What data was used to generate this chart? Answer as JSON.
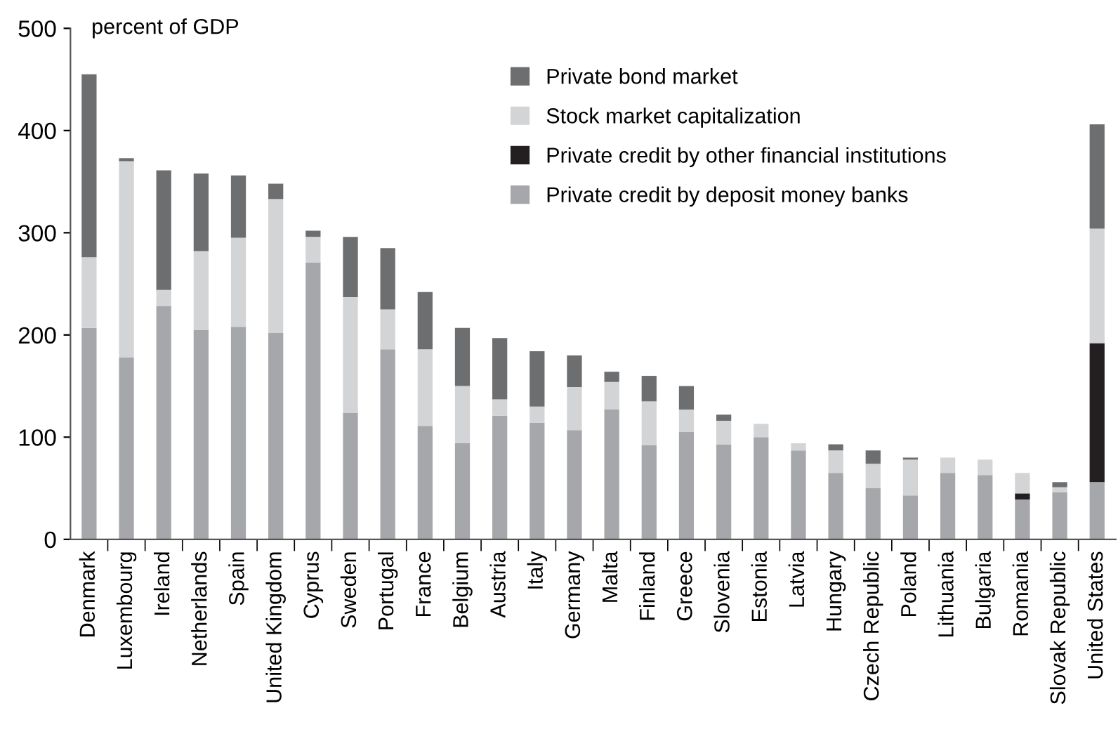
{
  "chart_data": {
    "type": "bar",
    "stacked": true,
    "ylabel": "percent of GDP",
    "categories": [
      "Denmark",
      "Luxembourg",
      "Ireland",
      "Netherlands",
      "Spain",
      "United Kingdom",
      "Cyprus",
      "Sweden",
      "Portugal",
      "France",
      "Belgium",
      "Austria",
      "Italy",
      "Germany",
      "Malta",
      "Finland",
      "Greece",
      "Slovenia",
      "Estonia",
      "Latvia",
      "Hungary",
      "Czech Republic",
      "Poland",
      "Lithuania",
      "Bulgaria",
      "Romania",
      "Slovak Republic",
      "United States"
    ],
    "series": [
      {
        "name": "Private credit by deposit money banks",
        "color": "#a6a7aa",
        "values": [
          207,
          178,
          228,
          205,
          208,
          202,
          271,
          124,
          186,
          111,
          94,
          121,
          114,
          107,
          127,
          92,
          105,
          93,
          100,
          87,
          65,
          50,
          43,
          65,
          63,
          39,
          46,
          56
        ]
      },
      {
        "name": "Private credit by other financial institutions",
        "color": "#231f20",
        "values": [
          0,
          0,
          0,
          0,
          0,
          0,
          0,
          0,
          0,
          0,
          0,
          0,
          0,
          0,
          0,
          0,
          0,
          0,
          0,
          0,
          0,
          0,
          0,
          0,
          0,
          6,
          0,
          136
        ]
      },
      {
        "name": "Stock market capitalization",
        "color": "#d3d4d5",
        "values": [
          69,
          192,
          16,
          77,
          87,
          131,
          25,
          113,
          39,
          75,
          56,
          16,
          16,
          42,
          27,
          43,
          22,
          23,
          13,
          7,
          22,
          24,
          35,
          15,
          15,
          20,
          5,
          112
        ]
      },
      {
        "name": "Private bond market",
        "color": "#6d6e70",
        "values": [
          179,
          3,
          117,
          76,
          61,
          15,
          6,
          59,
          60,
          56,
          57,
          60,
          54,
          31,
          10,
          25,
          23,
          6,
          0,
          0,
          6,
          13,
          2,
          0,
          0,
          0,
          5,
          102
        ]
      }
    ],
    "ylim": [
      0,
      500
    ],
    "yticks": [
      0,
      100,
      200,
      300,
      400,
      500
    ],
    "grid": false,
    "legend": "top"
  }
}
